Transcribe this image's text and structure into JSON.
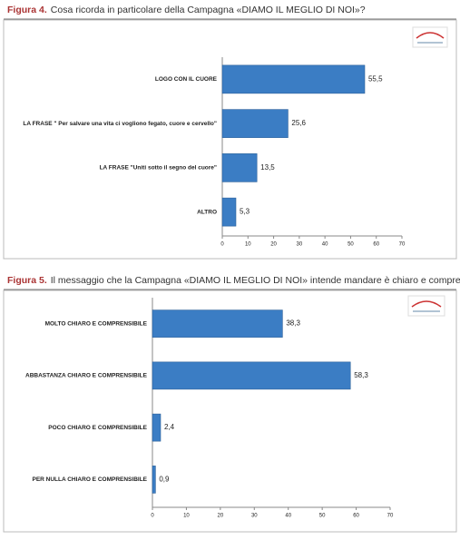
{
  "chart_data": [
    {
      "type": "bar",
      "orientation": "horizontal",
      "figure_label": "Figura 4.",
      "title": "Cosa ricorda in particolare della Campagna «DIAMO IL MEGLIO DI NOI»?",
      "categories": [
        "LOGO CON IL CUORE",
        "LA FRASE \" Per salvare una vita ci vogliono fegato, cuore e cervello\"",
        "LA FRASE \"Uniti sotto il segno del cuore\"",
        "ALTRO"
      ],
      "values": [
        55.5,
        25.6,
        13.5,
        5.3
      ],
      "value_labels": [
        "55,5",
        "25,6",
        "13,5",
        "5,3"
      ],
      "color": "#3b7dc4",
      "xlim": [
        0,
        70
      ],
      "xticks": [
        0,
        10,
        20,
        30,
        40,
        50,
        60,
        70
      ]
    },
    {
      "type": "bar",
      "orientation": "horizontal",
      "figure_label": "Figura 5.",
      "title": "Il messaggio che la Campagna «DIAMO IL MEGLIO DI NOI» intende mandare è chiaro e comprensibile?",
      "categories": [
        "MOLTO CHIARO E COMPRENSIBILE",
        "ABBASTANZA CHIARO E COMPRENSIBILE",
        "POCO CHIARO E COMPRENSIBILE",
        "PER NULLA CHIARO E COMPRENSIBILE"
      ],
      "values": [
        38.3,
        58.3,
        2.4,
        0.9
      ],
      "value_labels": [
        "38,3",
        "58,3",
        "2,4",
        "0,9"
      ],
      "color": "#3b7dc4",
      "xlim": [
        0,
        70
      ],
      "xticks": [
        0,
        10,
        20,
        30,
        40,
        50,
        60,
        70
      ]
    }
  ]
}
